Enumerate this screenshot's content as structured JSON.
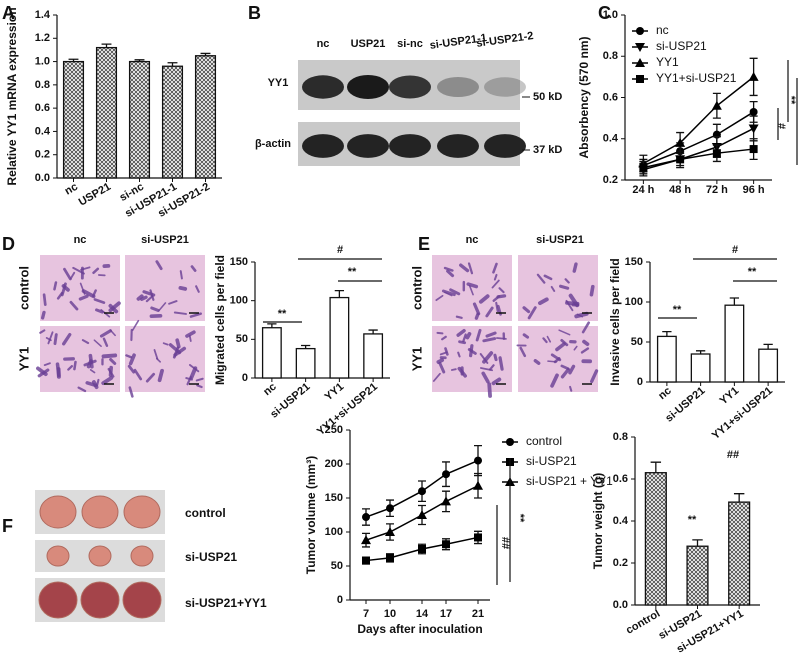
{
  "panel_labels": [
    "A",
    "B",
    "C",
    "D",
    "E",
    "F"
  ],
  "chart_data": [
    {
      "type": "bar",
      "ylabel": "Relative YY1 mRNA expression",
      "categories": [
        "nc",
        "USP21",
        "si-nc",
        "si-USP21-1",
        "si-USP21-2"
      ],
      "values": [
        1.0,
        1.12,
        1.0,
        0.96,
        1.05
      ],
      "errors": [
        0.02,
        0.03,
        0.015,
        0.03,
        0.02
      ],
      "color": "#ffffff",
      "pattern": "crosshatch",
      "ylim": [
        0,
        1.4
      ],
      "yticks": [
        {
          "value": 0,
          "label": "0.0"
        },
        0.2,
        0.4,
        0.6,
        0.8,
        {
          "value": 1,
          "label": "1.0"
        },
        1.2,
        1.4
      ]
    },
    {
      "type": "line",
      "ylabel": "Absorbency (570 nm)",
      "categories": [
        "24 h",
        "48 h",
        "72 h",
        "96 h"
      ],
      "series": [
        {
          "name": "nc",
          "marker": "circle",
          "color": "#000000",
          "values": [
            0.27,
            0.34,
            0.42,
            0.53
          ],
          "errors": [
            0.03,
            0.04,
            0.05,
            0.05
          ]
        },
        {
          "name": "si-USP21",
          "marker": "down-triangle",
          "color": "#000000",
          "values": [
            0.25,
            0.3,
            0.36,
            0.45
          ],
          "errors": [
            0.03,
            0.04,
            0.05,
            0.06
          ]
        },
        {
          "name": "YY1",
          "marker": "triangle",
          "color": "#000000",
          "values": [
            0.28,
            0.38,
            0.56,
            0.7
          ],
          "errors": [
            0.04,
            0.05,
            0.06,
            0.09
          ]
        },
        {
          "name": "YY1+si-USP21",
          "marker": "square",
          "color": "#000000",
          "values": [
            0.26,
            0.3,
            0.33,
            0.35
          ],
          "errors": [
            0.03,
            0.03,
            0.04,
            0.05
          ]
        }
      ],
      "ylim": [
        0.2,
        1.0
      ],
      "yticks": [
        0.2,
        0.4,
        0.6,
        0.8,
        {
          "value": 1,
          "label": "1.0"
        }
      ],
      "annotations": [
        "**",
        "#",
        "**"
      ]
    },
    {
      "type": "bar",
      "ylabel": "Migrated cells per field",
      "categories": [
        "nc",
        "si-USP21",
        "YY1",
        "YY1+si-USP21"
      ],
      "values": [
        65,
        38,
        104,
        57
      ],
      "errors": [
        5,
        4,
        9,
        5
      ],
      "color": "#ffffff",
      "ylim": [
        0,
        150
      ],
      "yticks": [
        0,
        50,
        100,
        150
      ],
      "annotations": [
        "**",
        "#",
        "**"
      ]
    },
    {
      "type": "bar",
      "ylabel": "Invasive cells per field",
      "categories": [
        "nc",
        "si-USP21",
        "YY1",
        "YY1+si-USP21"
      ],
      "values": [
        57,
        35,
        96,
        41
      ],
      "errors": [
        6,
        4,
        9,
        6
      ],
      "color": "#ffffff",
      "ylim": [
        0,
        150
      ],
      "yticks": [
        0,
        50,
        100,
        150
      ],
      "annotations": [
        "**",
        "#",
        "**"
      ]
    },
    {
      "type": "line",
      "ylabel": "Tumor volume (mm³)",
      "xlabel": "Days after inoculation",
      "x": [
        7,
        10,
        14,
        17,
        21
      ],
      "series": [
        {
          "name": "control",
          "marker": "circle",
          "color": "#000000",
          "values": [
            122,
            135,
            160,
            185,
            205
          ],
          "errors": [
            12,
            12,
            15,
            18,
            22
          ]
        },
        {
          "name": "si-USP21",
          "marker": "square",
          "color": "#000000",
          "values": [
            58,
            62,
            75,
            82,
            92
          ],
          "errors": [
            5,
            6,
            7,
            8,
            9
          ]
        },
        {
          "name": "si-USP21 + YY1",
          "marker": "triangle",
          "color": "#000000",
          "values": [
            88,
            100,
            125,
            145,
            168
          ],
          "errors": [
            10,
            12,
            14,
            15,
            18
          ]
        }
      ],
      "xlim": [
        5,
        22.5
      ],
      "xticks": [
        7,
        10,
        14,
        17,
        21
      ],
      "ylim": [
        0,
        250
      ],
      "yticks": [
        0,
        50,
        100,
        150,
        200,
        250
      ],
      "annotations": [
        "##",
        "**"
      ]
    },
    {
      "type": "bar",
      "ylabel": "Tumor weight (g)",
      "categories": [
        "control",
        "si-USP21",
        "si-USP21+YY1"
      ],
      "values": [
        0.63,
        0.28,
        0.49
      ],
      "errors": [
        0.05,
        0.03,
        0.04
      ],
      "color": "#ffffff",
      "pattern": "crosshatch",
      "ylim": [
        0,
        0.8
      ],
      "yticks": [
        {
          "value": 0,
          "label": "0.0"
        },
        0.2,
        0.4,
        0.6,
        0.8
      ],
      "annotations": [
        "**",
        "##"
      ]
    }
  ],
  "blot": {
    "lanes": [
      "nc",
      "USP21",
      "si-nc",
      "si-USP21-1",
      "si-USP21-2"
    ],
    "rows": [
      "YY1",
      "β-actin"
    ],
    "markers": [
      "50 kD",
      "37 kD"
    ]
  },
  "micrographs": [
    {
      "columns": [
        "nc",
        "si-USP21"
      ],
      "rows": [
        "control",
        "YY1"
      ]
    },
    {
      "columns": [
        "nc",
        "si-USP21"
      ],
      "rows": [
        "control",
        "YY1"
      ]
    }
  ],
  "tumors": {
    "rows": [
      "control",
      "si-USP21",
      "si-USP21+YY1"
    ]
  }
}
